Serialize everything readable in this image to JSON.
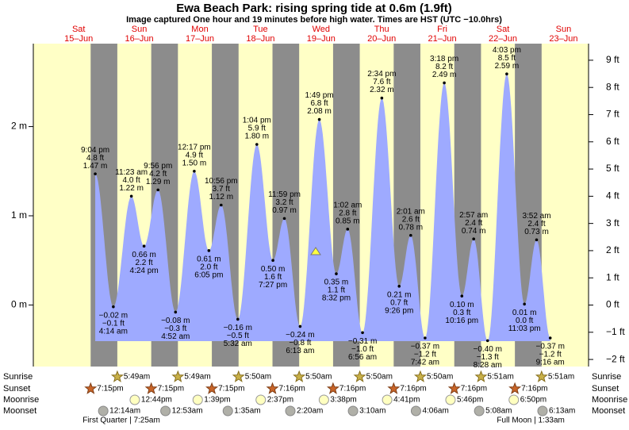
{
  "header": {
    "title": "Ewa Beach Park: rising  spring tide at 0.6m (1.9ft)",
    "subtitle": "Image captured One hour and 19 minutes before high water. Times are HST (UTC −10.0hrs)"
  },
  "chart_data": {
    "type": "tide",
    "current_height": 0.6,
    "ylim": [
      -0.69,
      2.93
    ],
    "yticks": [
      {
        "value": 0,
        "label": "0 m"
      },
      {
        "value": 1,
        "label": "1 m"
      },
      {
        "value": 2,
        "label": "2 m"
      }
    ],
    "y2lim": [
      -2.26,
      9.61
    ],
    "y2ticks": [
      {
        "value": -2,
        "label": "−2 ft"
      },
      {
        "value": -1,
        "label": "−1 ft"
      },
      {
        "value": 0,
        "label": "0 ft"
      },
      {
        "value": 1,
        "label": "1 ft"
      },
      {
        "value": 2,
        "label": "2 ft"
      },
      {
        "value": 3,
        "label": "3 ft"
      },
      {
        "value": 4,
        "label": "4 ft"
      },
      {
        "value": 5,
        "label": "5 ft"
      },
      {
        "value": 6,
        "label": "6 ft"
      },
      {
        "value": 7,
        "label": "7 ft"
      },
      {
        "value": 8,
        "label": "8 ft"
      },
      {
        "value": 9,
        "label": "9 ft"
      }
    ],
    "row_labels": {
      "sunrise": "Sunrise",
      "sunset": "Sunset",
      "moonrise": "Moonrise",
      "moonset": "Moonset"
    },
    "days": [
      {
        "weekday": "Sat",
        "date": "15–Jun",
        "sunset": "7:15pm",
        "extremes": [
          {
            "time": "9:04 pm",
            "height": 1.47,
            "height_label": "1.47 m",
            "feet_label": "4.8 ft"
          }
        ]
      },
      {
        "weekday": "Sun",
        "date": "16–Jun",
        "sunrise": "5:49am",
        "sunset": "7:15pm",
        "moonrise": "12:44pm",
        "moonset": "12:14am",
        "moon_phase": "First Quarter | 7:25am",
        "extremes": [
          {
            "time": "4:14 am",
            "height": -0.02,
            "height_label": "−0.02 m",
            "feet_label": "−0.1 ft"
          },
          {
            "time": "11:23 am",
            "height": 1.22,
            "height_label": "1.22 m",
            "feet_label": "4.0 ft"
          },
          {
            "time": "4:24 pm",
            "height": 0.66,
            "height_label": "0.66 m",
            "feet_label": "2.2 ft"
          },
          {
            "time": "9:56 pm",
            "height": 1.29,
            "height_label": "1.29 m",
            "feet_label": "4.2 ft"
          }
        ]
      },
      {
        "weekday": "Mon",
        "date": "17–Jun",
        "sunrise": "5:49am",
        "sunset": "7:15pm",
        "moonrise": "1:39pm",
        "moonset": "12:53am",
        "extremes": [
          {
            "time": "4:52 am",
            "height": -0.08,
            "height_label": "−0.08 m",
            "feet_label": "−0.3 ft"
          },
          {
            "time": "12:17 pm",
            "height": 1.5,
            "height_label": "1.50 m",
            "feet_label": "4.9 ft"
          },
          {
            "time": "6:05 pm",
            "height": 0.61,
            "height_label": "0.61 m",
            "feet_label": "2.0 ft"
          },
          {
            "time": "10:56 pm",
            "height": 1.12,
            "height_label": "1.12 m",
            "feet_label": "3.7 ft"
          }
        ]
      },
      {
        "weekday": "Tue",
        "date": "18–Jun",
        "sunrise": "5:50am",
        "sunset": "7:16pm",
        "moonrise": "2:37pm",
        "moonset": "1:35am",
        "extremes": [
          {
            "time": "5:32 am",
            "height": -0.16,
            "height_label": "−0.16 m",
            "feet_label": "−0.5 ft"
          },
          {
            "time": "1:04 pm",
            "height": 1.8,
            "height_label": "1.80 m",
            "feet_label": "5.9 ft"
          },
          {
            "time": "7:27 pm",
            "height": 0.5,
            "height_label": "0.50 m",
            "feet_label": "1.6 ft"
          },
          {
            "time": "11:59 pm",
            "height": 0.97,
            "height_label": "0.97 m",
            "feet_label": "3.2 ft"
          }
        ]
      },
      {
        "weekday": "Wed",
        "date": "19–Jun",
        "sunrise": "5:50am",
        "sunset": "7:16pm",
        "moonrise": "3:38pm",
        "moonset": "2:20am",
        "extremes": [
          {
            "time": "6:13 am",
            "height": -0.24,
            "height_label": "−0.24 m",
            "feet_label": "−0.8 ft"
          },
          {
            "time": "1:49 pm",
            "height": 2.08,
            "height_label": "2.08 m",
            "feet_label": "6.8 ft"
          },
          {
            "time": "8:32 pm",
            "height": 0.35,
            "height_label": "0.35 m",
            "feet_label": "1.1 ft"
          }
        ]
      },
      {
        "weekday": "Thu",
        "date": "20–Jun",
        "sunrise": "5:50am",
        "sunset": "7:16pm",
        "moonrise": "4:41pm",
        "moonset": "3:10am",
        "extremes": [
          {
            "time": "1:02 am",
            "height": 0.85,
            "height_label": "0.85 m",
            "feet_label": "2.8 ft"
          },
          {
            "time": "6:56 am",
            "height": -0.31,
            "height_label": "−0.31 m",
            "feet_label": "−1.0 ft"
          },
          {
            "time": "2:34 pm",
            "height": 2.32,
            "height_label": "2.32 m",
            "feet_label": "7.6 ft"
          },
          {
            "time": "9:26 pm",
            "height": 0.21,
            "height_label": "0.21 m",
            "feet_label": "0.7 ft"
          }
        ]
      },
      {
        "weekday": "Fri",
        "date": "21–Jun",
        "sunrise": "5:50am",
        "sunset": "7:16pm",
        "moonrise": "5:46pm",
        "moonset": "4:06am",
        "extremes": [
          {
            "time": "2:01 am",
            "height": 0.78,
            "height_label": "0.78 m",
            "feet_label": "2.6 ft"
          },
          {
            "time": "7:42 am",
            "height": -0.37,
            "height_label": "−0.37 m",
            "feet_label": "−1.2 ft"
          },
          {
            "time": "3:18 pm",
            "height": 2.49,
            "height_label": "2.49 m",
            "feet_label": "8.2 ft"
          },
          {
            "time": "10:16 pm",
            "height": 0.1,
            "height_label": "0.10 m",
            "feet_label": "0.3 ft"
          }
        ]
      },
      {
        "weekday": "Sat",
        "date": "22–Jun",
        "sunrise": "5:51am",
        "sunset": "7:16pm",
        "moonrise": "6:50pm",
        "moonset": "5:08am",
        "extremes": [
          {
            "time": "2:57 am",
            "height": 0.74,
            "height_label": "0.74 m",
            "feet_label": "2.4 ft"
          },
          {
            "time": "8:28 am",
            "height": -0.4,
            "height_label": "−0.40 m",
            "feet_label": "−1.3 ft"
          },
          {
            "time": "4:03 pm",
            "height": 2.59,
            "height_label": "2.59 m",
            "feet_label": "8.5 ft"
          },
          {
            "time": "11:03 pm",
            "height": 0.01,
            "height_label": "0.01 m",
            "feet_label": "0.0 ft"
          }
        ]
      },
      {
        "weekday": "Sun",
        "date": "23–Jun",
        "sunrise": "5:51am",
        "moonset": "6:13am",
        "moon_phase": "Full Moon | 1:33am",
        "extremes": [
          {
            "time": "3:52 am",
            "height": 0.73,
            "height_label": "0.73 m",
            "feet_label": "2.4 ft"
          },
          {
            "time": "9:16 am",
            "height": -0.37,
            "height_label": "−0.37 m",
            "feet_label": "−1.2 ft"
          }
        ]
      }
    ]
  }
}
